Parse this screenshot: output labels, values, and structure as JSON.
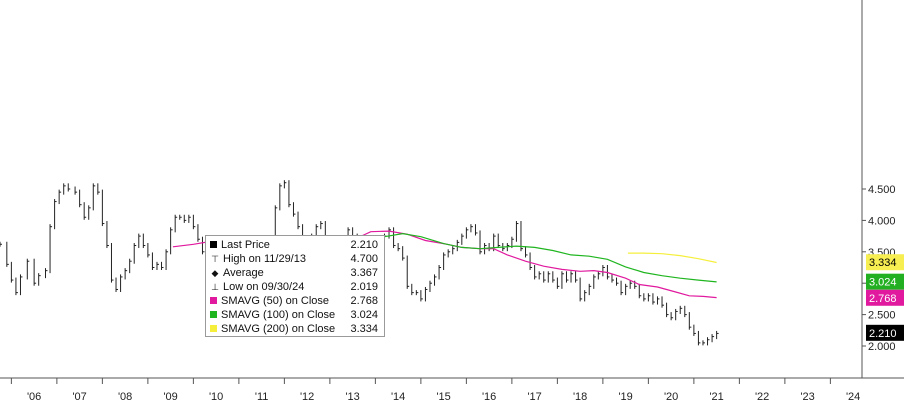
{
  "chart_data": {
    "type": "line",
    "ylim": [
      1.65,
      4.78
    ],
    "xlim": [
      2005.75,
      2024.75
    ],
    "x_ticks": [
      "'06",
      "'07",
      "'08",
      "'09",
      "'10",
      "'11",
      "'12",
      "'13",
      "'14",
      "'15",
      "'16",
      "'17",
      "'18",
      "'19",
      "'20",
      "'21",
      "'22",
      "'23",
      "'24"
    ],
    "y_ticks": [
      "2.000",
      "2.500",
      "3.000",
      "3.500",
      "4.000",
      "4.500"
    ],
    "grid": false,
    "legend": {
      "placement": "lower-left",
      "entries": [
        {
          "label": "Last Price",
          "value": "2.210",
          "marker": "square",
          "color": "#000000"
        },
        {
          "label": "High on 11/29/13",
          "value": "4.700",
          "marker": "high"
        },
        {
          "label": "Average",
          "value": "3.367",
          "marker": "avg"
        },
        {
          "label": "Low on 09/30/24",
          "value": "2.019",
          "marker": "low"
        },
        {
          "label": "SMAVG (50)  on Close",
          "value": "2.768",
          "marker": "square",
          "color": "#e0199e"
        },
        {
          "label": "SMAVG (100)  on Close",
          "value": "3.024",
          "marker": "square",
          "color": "#1fb51f"
        },
        {
          "label": "SMAVG (200)  on Close",
          "value": "3.334",
          "marker": "square",
          "color": "#f5ef3c"
        }
      ]
    },
    "value_tags": [
      {
        "value": 3.334,
        "text": "3.334",
        "bg": "#f7ee52",
        "fg": "#000000"
      },
      {
        "value": 3.024,
        "text": "3.024",
        "bg": "#22b022",
        "fg": "#ffffff"
      },
      {
        "value": 2.768,
        "text": "2.768",
        "bg": "#e0199e",
        "fg": "#ffffff"
      },
      {
        "value": 2.21,
        "text": "2.210",
        "bg": "#000000",
        "fg": "#ffffff"
      }
    ],
    "series": [
      {
        "name": "Last Price",
        "style": "bars",
        "color": "#222222",
        "points": [
          [
            2005.75,
            3.62
          ],
          [
            2005.9,
            3.3
          ],
          [
            2006.0,
            3.05
          ],
          [
            2006.1,
            2.85
          ],
          [
            2006.2,
            3.1
          ],
          [
            2006.35,
            3.35
          ],
          [
            2006.5,
            3.0
          ],
          [
            2006.6,
            3.12
          ],
          [
            2006.75,
            3.2
          ],
          [
            2006.85,
            3.9
          ],
          [
            2006.95,
            4.3
          ],
          [
            2007.05,
            4.45
          ],
          [
            2007.15,
            4.55
          ],
          [
            2007.25,
            4.5
          ],
          [
            2007.4,
            4.45
          ],
          [
            2007.5,
            4.25
          ],
          [
            2007.6,
            4.05
          ],
          [
            2007.7,
            4.2
          ],
          [
            2007.8,
            4.55
          ],
          [
            2007.9,
            4.45
          ],
          [
            2008.0,
            3.95
          ],
          [
            2008.1,
            3.6
          ],
          [
            2008.2,
            3.05
          ],
          [
            2008.3,
            2.9
          ],
          [
            2008.4,
            3.1
          ],
          [
            2008.5,
            3.2
          ],
          [
            2008.6,
            3.35
          ],
          [
            2008.7,
            3.6
          ],
          [
            2008.8,
            3.75
          ],
          [
            2008.9,
            3.6
          ],
          [
            2009.0,
            3.45
          ],
          [
            2009.1,
            3.25
          ],
          [
            2009.2,
            3.3
          ],
          [
            2009.3,
            3.25
          ],
          [
            2009.4,
            3.5
          ],
          [
            2009.5,
            3.85
          ],
          [
            2009.6,
            4.05
          ],
          [
            2009.7,
            4.05
          ],
          [
            2009.8,
            4.0
          ],
          [
            2009.9,
            4.05
          ],
          [
            2010.0,
            3.9
          ],
          [
            2010.1,
            3.7
          ],
          [
            2010.2,
            3.5
          ],
          [
            2010.3,
            3.35
          ],
          [
            2010.4,
            3.3
          ],
          [
            2010.5,
            3.4
          ],
          [
            2010.6,
            3.55
          ],
          [
            2010.7,
            3.5
          ],
          [
            2010.8,
            3.45
          ],
          [
            2010.9,
            3.5
          ],
          [
            2011.0,
            3.55
          ],
          [
            2011.1,
            3.6
          ],
          [
            2011.2,
            3.55
          ],
          [
            2011.3,
            3.5
          ],
          [
            2011.4,
            3.55
          ],
          [
            2011.5,
            3.45
          ],
          [
            2011.6,
            3.55
          ],
          [
            2011.7,
            3.65
          ],
          [
            2011.8,
            4.2
          ],
          [
            2011.9,
            4.55
          ],
          [
            2012.0,
            4.6
          ],
          [
            2012.1,
            4.25
          ],
          [
            2012.2,
            4.1
          ],
          [
            2012.3,
            3.9
          ],
          [
            2012.4,
            3.55
          ],
          [
            2012.5,
            3.7
          ],
          [
            2012.6,
            3.75
          ],
          [
            2012.7,
            3.9
          ],
          [
            2012.8,
            3.95
          ],
          [
            2012.9,
            3.7
          ],
          [
            2013.0,
            3.55
          ],
          [
            2013.1,
            3.25
          ],
          [
            2013.2,
            3.35
          ],
          [
            2013.3,
            3.6
          ],
          [
            2013.4,
            3.85
          ],
          [
            2013.5,
            3.75
          ],
          [
            2013.6,
            3.65
          ],
          [
            2013.7,
            3.5
          ],
          [
            2013.8,
            3.3
          ],
          [
            2013.9,
            3.05
          ],
          [
            2014.0,
            3.15
          ],
          [
            2014.1,
            3.6
          ],
          [
            2014.2,
            3.75
          ],
          [
            2014.3,
            3.85
          ],
          [
            2014.4,
            3.6
          ],
          [
            2014.5,
            3.55
          ],
          [
            2014.6,
            3.4
          ],
          [
            2014.7,
            2.95
          ],
          [
            2014.8,
            2.85
          ],
          [
            2014.9,
            2.85
          ],
          [
            2015.0,
            2.75
          ],
          [
            2015.1,
            2.9
          ],
          [
            2015.2,
            3.0
          ],
          [
            2015.3,
            3.1
          ],
          [
            2015.4,
            3.25
          ],
          [
            2015.5,
            3.45
          ],
          [
            2015.6,
            3.5
          ],
          [
            2015.7,
            3.55
          ],
          [
            2015.8,
            3.65
          ],
          [
            2015.9,
            3.75
          ],
          [
            2016.0,
            3.85
          ],
          [
            2016.1,
            3.9
          ],
          [
            2016.2,
            3.8
          ],
          [
            2016.3,
            3.5
          ],
          [
            2016.4,
            3.6
          ],
          [
            2016.5,
            3.55
          ],
          [
            2016.6,
            3.75
          ],
          [
            2016.7,
            3.6
          ],
          [
            2016.8,
            3.55
          ],
          [
            2016.9,
            3.6
          ],
          [
            2017.0,
            3.7
          ],
          [
            2017.1,
            3.95
          ],
          [
            2017.2,
            3.55
          ],
          [
            2017.3,
            3.45
          ],
          [
            2017.4,
            3.25
          ],
          [
            2017.5,
            3.1
          ],
          [
            2017.6,
            3.15
          ],
          [
            2017.7,
            3.05
          ],
          [
            2017.8,
            3.15
          ],
          [
            2017.9,
            3.05
          ],
          [
            2018.0,
            2.95
          ],
          [
            2018.1,
            3.15
          ],
          [
            2018.2,
            3.05
          ],
          [
            2018.3,
            3.15
          ],
          [
            2018.4,
            3.05
          ],
          [
            2018.5,
            2.75
          ],
          [
            2018.6,
            2.85
          ],
          [
            2018.7,
            2.95
          ],
          [
            2018.8,
            3.1
          ],
          [
            2018.9,
            3.15
          ],
          [
            2019.0,
            3.25
          ],
          [
            2019.1,
            3.1
          ],
          [
            2019.2,
            3.05
          ],
          [
            2019.3,
            3.0
          ],
          [
            2019.4,
            2.85
          ],
          [
            2019.5,
            2.95
          ],
          [
            2019.6,
            3.0
          ],
          [
            2019.7,
            2.95
          ],
          [
            2019.8,
            2.8
          ],
          [
            2019.9,
            2.75
          ],
          [
            2020.0,
            2.8
          ],
          [
            2020.1,
            2.7
          ],
          [
            2020.2,
            2.75
          ],
          [
            2020.3,
            2.65
          ],
          [
            2020.4,
            2.5
          ],
          [
            2020.5,
            2.45
          ],
          [
            2020.6,
            2.55
          ],
          [
            2020.7,
            2.6
          ],
          [
            2020.8,
            2.5
          ],
          [
            2020.9,
            2.3
          ],
          [
            2021.0,
            2.2
          ],
          [
            2021.1,
            2.05
          ],
          [
            2021.2,
            2.05
          ],
          [
            2021.3,
            2.1
          ],
          [
            2021.4,
            2.15
          ],
          [
            2021.5,
            2.2
          ]
        ]
      },
      {
        "name": "SMAVG (50)  on Close",
        "style": "line",
        "color": "#e0199e",
        "points": [
          [
            2009.55,
            3.58
          ],
          [
            2010.0,
            3.62
          ],
          [
            2010.5,
            3.68
          ],
          [
            2010.9,
            3.75
          ],
          [
            2011.3,
            3.73
          ],
          [
            2011.7,
            3.63
          ],
          [
            2012.2,
            3.52
          ],
          [
            2012.7,
            3.55
          ],
          [
            2013.1,
            3.58
          ],
          [
            2013.6,
            3.72
          ],
          [
            2013.9,
            3.82
          ],
          [
            2014.3,
            3.83
          ],
          [
            2014.7,
            3.78
          ],
          [
            2015.1,
            3.68
          ],
          [
            2015.5,
            3.63
          ],
          [
            2015.9,
            3.57
          ],
          [
            2016.3,
            3.55
          ],
          [
            2016.6,
            3.55
          ],
          [
            2016.9,
            3.45
          ],
          [
            2017.3,
            3.35
          ],
          [
            2017.7,
            3.27
          ],
          [
            2018.1,
            3.22
          ],
          [
            2018.5,
            3.19
          ],
          [
            2018.8,
            3.2
          ],
          [
            2019.1,
            3.17
          ],
          [
            2019.5,
            3.08
          ],
          [
            2019.8,
            2.98
          ],
          [
            2020.2,
            2.94
          ],
          [
            2020.6,
            2.86
          ],
          [
            2020.9,
            2.8
          ],
          [
            2021.2,
            2.79
          ],
          [
            2021.5,
            2.77
          ]
        ]
      },
      {
        "name": "SMAVG (100)  on Close",
        "style": "line",
        "color": "#1fb51f",
        "points": [
          [
            2013.85,
            3.7
          ],
          [
            2014.2,
            3.74
          ],
          [
            2014.6,
            3.79
          ],
          [
            2015.0,
            3.74
          ],
          [
            2015.5,
            3.63
          ],
          [
            2015.9,
            3.57
          ],
          [
            2016.3,
            3.55
          ],
          [
            2016.7,
            3.57
          ],
          [
            2017.1,
            3.59
          ],
          [
            2017.5,
            3.57
          ],
          [
            2017.9,
            3.52
          ],
          [
            2018.3,
            3.45
          ],
          [
            2018.7,
            3.43
          ],
          [
            2019.1,
            3.38
          ],
          [
            2019.5,
            3.26
          ],
          [
            2019.9,
            3.17
          ],
          [
            2020.3,
            3.12
          ],
          [
            2020.7,
            3.08
          ],
          [
            2021.1,
            3.05
          ],
          [
            2021.5,
            3.02
          ]
        ]
      },
      {
        "name": "SMAVG (200)  on Close",
        "style": "line",
        "color": "#f5ef3c",
        "points": [
          [
            2019.55,
            3.48
          ],
          [
            2019.9,
            3.48
          ],
          [
            2020.3,
            3.47
          ],
          [
            2020.7,
            3.44
          ],
          [
            2021.1,
            3.39
          ],
          [
            2021.5,
            3.33
          ]
        ]
      }
    ]
  }
}
